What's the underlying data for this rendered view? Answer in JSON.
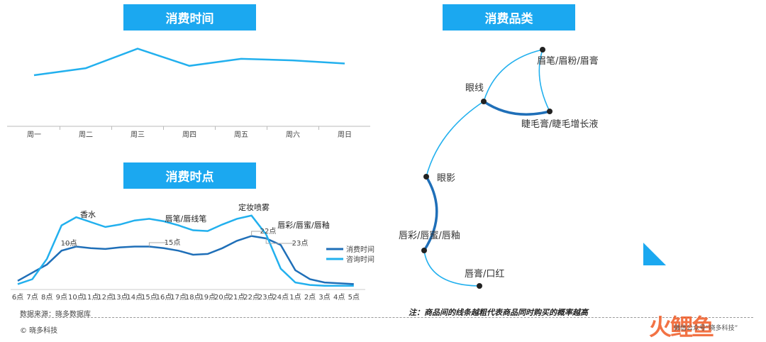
{
  "banners": {
    "time": "消费时间",
    "hour": "消费时点",
    "category": "消费品类"
  },
  "colors": {
    "accent": "#1ba8f0",
    "dark": "#1f6fb8",
    "light": "#22b0ee"
  },
  "chart_data": [
    {
      "type": "line",
      "title": "消费时间",
      "categories": [
        "周一",
        "周二",
        "周三",
        "周四",
        "周五",
        "周六",
        "周日"
      ],
      "series": [
        {
          "values": [
            40,
            49,
            74,
            52,
            61,
            59,
            55
          ]
        }
      ],
      "ylim": [
        0,
        100
      ]
    },
    {
      "type": "line",
      "title": "消费时点",
      "categories": [
        "6点",
        "7点",
        "8点",
        "9点",
        "10点",
        "11点",
        "12点",
        "13点",
        "14点",
        "15点",
        "16点",
        "17点",
        "18点",
        "19点",
        "20点",
        "21点",
        "22点",
        "23点",
        "24点",
        "1点",
        "2点",
        "3点",
        "4点",
        "5点"
      ],
      "series": [
        {
          "name": "消费时间",
          "values": [
            8,
            18,
            28,
            45,
            50,
            48,
            47,
            49,
            50,
            50,
            48,
            45,
            40,
            41,
            48,
            57,
            63,
            60,
            52,
            21,
            10,
            6,
            5,
            4
          ]
        },
        {
          "name": "咨询时间",
          "values": [
            4,
            10,
            35,
            76,
            86,
            80,
            74,
            77,
            82,
            84,
            81,
            76,
            70,
            69,
            77,
            84,
            88,
            65,
            23,
            6,
            3,
            2,
            2,
            2
          ]
        }
      ],
      "ylim": [
        0,
        100
      ],
      "annotations": [
        {
          "text": "香水",
          "x": "9点"
        },
        {
          "text": "唇笔/唇线笔",
          "x": "16点"
        },
        {
          "text": "定妆喷雾",
          "x": "22点"
        },
        {
          "text": "唇彩/唇蜜/唇釉",
          "x": "24点"
        },
        {
          "text": "10点",
          "x": "10点"
        },
        {
          "text": "15点",
          "x": "15点"
        },
        {
          "text": "22点",
          "x": "22点"
        },
        {
          "text": "23点",
          "x": "23点"
        }
      ]
    },
    {
      "type": "network",
      "title": "消费品类",
      "nodes": [
        "眉笔/眉粉/眉膏",
        "眼线",
        "睫毛膏/睫毛增长液",
        "眼影",
        "唇彩/唇蜜/唇釉",
        "唇膏/口红"
      ],
      "edges": [
        {
          "from": "眼线",
          "to": "眉笔/眉粉/眉膏",
          "weight": 1
        },
        {
          "from": "眉笔/眉粉/眉膏",
          "to": "睫毛膏/睫毛增长液",
          "weight": 1
        },
        {
          "from": "眼线",
          "to": "睫毛膏/睫毛增长液",
          "weight": 3
        },
        {
          "from": "眼线",
          "to": "眼影",
          "weight": 1
        },
        {
          "from": "眼影",
          "to": "唇彩/唇蜜/唇釉",
          "weight": 3
        },
        {
          "from": "唇彩/唇蜜/唇釉",
          "to": "唇膏/口红",
          "weight": 1
        }
      ]
    }
  ],
  "footer": {
    "source": "数据来源：晓多数据库",
    "copyright": "© 晓多科技",
    "note": "注：商品间的线条越粗代表商品同时购买的概率越高",
    "wechat": "微信公众号“晓多科技”",
    "watermark": "火鲤鱼"
  }
}
